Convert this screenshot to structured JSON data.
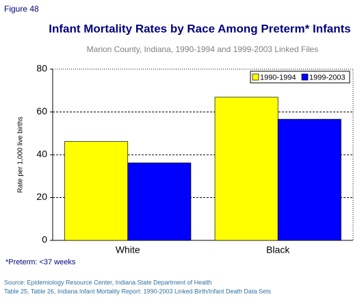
{
  "chart_data": {
    "type": "bar",
    "figure_label": "Figure 48",
    "title": "Infant Mortality Rates by Race Among Preterm* Infants",
    "subtitle": "Marion County, Indiana, 1990-1994 and 1999-2003 Linked Files",
    "y_label": "Rate per 1,000 live births",
    "categories": [
      "White",
      "Black"
    ],
    "series": [
      {
        "name": "1990-1994",
        "color": "#ffff00",
        "values": [
          46.2,
          66.9
        ]
      },
      {
        "name": "1999-2003",
        "color": "#0000ff",
        "values": [
          36.2,
          56.6
        ]
      }
    ],
    "ylim": [
      0,
      80
    ],
    "yticks": [
      0,
      20,
      40,
      60,
      80
    ],
    "grid": true,
    "legend": "top-right",
    "footnote": "*Preterm: <37 weeks",
    "source": [
      "Source: Epidemiology Resource Center, Indiana State Department of Health",
      "Table 25, Table 26, Indiana Infant Mortality Report: 1990-2003 Linked Birth/Infant Death Data Sets"
    ]
  }
}
